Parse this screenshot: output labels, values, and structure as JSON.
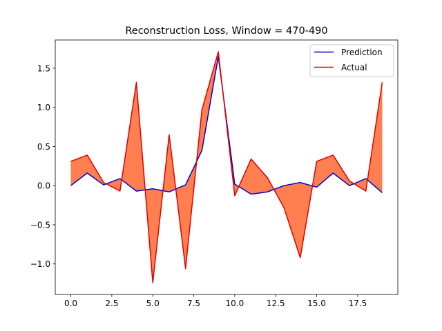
{
  "chart_data": {
    "type": "line",
    "title": "Reconstruction Loss, Window = 470-490",
    "xlabel": "",
    "ylabel": "",
    "x": [
      0,
      1,
      2,
      3,
      4,
      5,
      6,
      7,
      8,
      9,
      10,
      11,
      12,
      13,
      14,
      15,
      16,
      17,
      18,
      19
    ],
    "series": [
      {
        "name": "Prediction",
        "color": "#0000cc",
        "values": [
          0.0,
          0.16,
          0.01,
          0.09,
          -0.07,
          -0.04,
          -0.08,
          0.01,
          0.45,
          1.65,
          0.02,
          -0.11,
          -0.08,
          0.0,
          0.04,
          -0.02,
          0.16,
          0.0,
          0.09,
          -0.09
        ]
      },
      {
        "name": "Actual",
        "color": "#e00000",
        "values": [
          0.31,
          0.39,
          0.04,
          -0.07,
          1.32,
          -1.24,
          0.65,
          -1.06,
          0.97,
          1.71,
          -0.13,
          0.34,
          0.1,
          -0.28,
          -0.92,
          0.31,
          0.39,
          0.06,
          -0.07,
          1.32
        ]
      }
    ],
    "fill_between": {
      "color": "#ff7f50",
      "between": [
        "Prediction",
        "Actual"
      ]
    },
    "xlim": [
      -0.95,
      19.95
    ],
    "ylim": [
      -1.39,
      1.86
    ],
    "xticks": [
      0.0,
      2.5,
      5.0,
      7.5,
      10.0,
      12.5,
      15.0,
      17.5
    ],
    "xtick_labels": [
      "0.0",
      "2.5",
      "5.0",
      "7.5",
      "10.0",
      "12.5",
      "15.0",
      "17.5"
    ],
    "yticks": [
      -1.0,
      -0.5,
      0.0,
      0.5,
      1.0,
      1.5
    ],
    "ytick_labels": [
      "−1.0",
      "−0.5",
      "0.0",
      "0.5",
      "1.0",
      "1.5"
    ],
    "legend": {
      "position": "top-right",
      "entries": [
        "Prediction",
        "Actual"
      ]
    },
    "grid": false
  }
}
